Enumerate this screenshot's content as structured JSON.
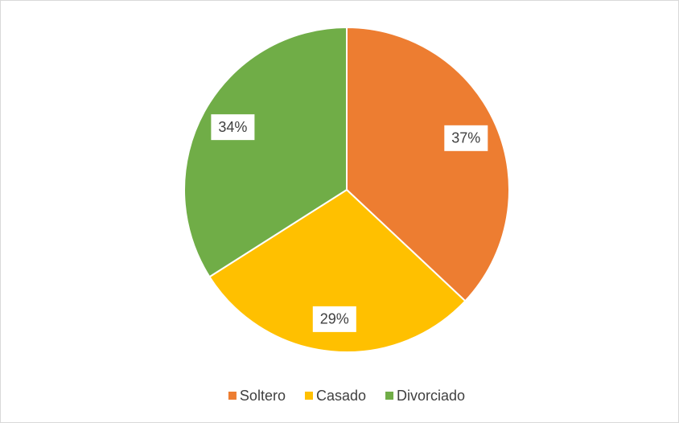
{
  "chart_data": {
    "type": "pie",
    "categories": [
      "Soltero",
      "Casado",
      "Divorciado"
    ],
    "values": [
      37,
      29,
      34
    ],
    "value_labels": [
      "37%",
      "29%",
      "34%"
    ],
    "colors": [
      "#ED7D31",
      "#FFC000",
      "#70AD47"
    ],
    "legend": "bottom"
  }
}
